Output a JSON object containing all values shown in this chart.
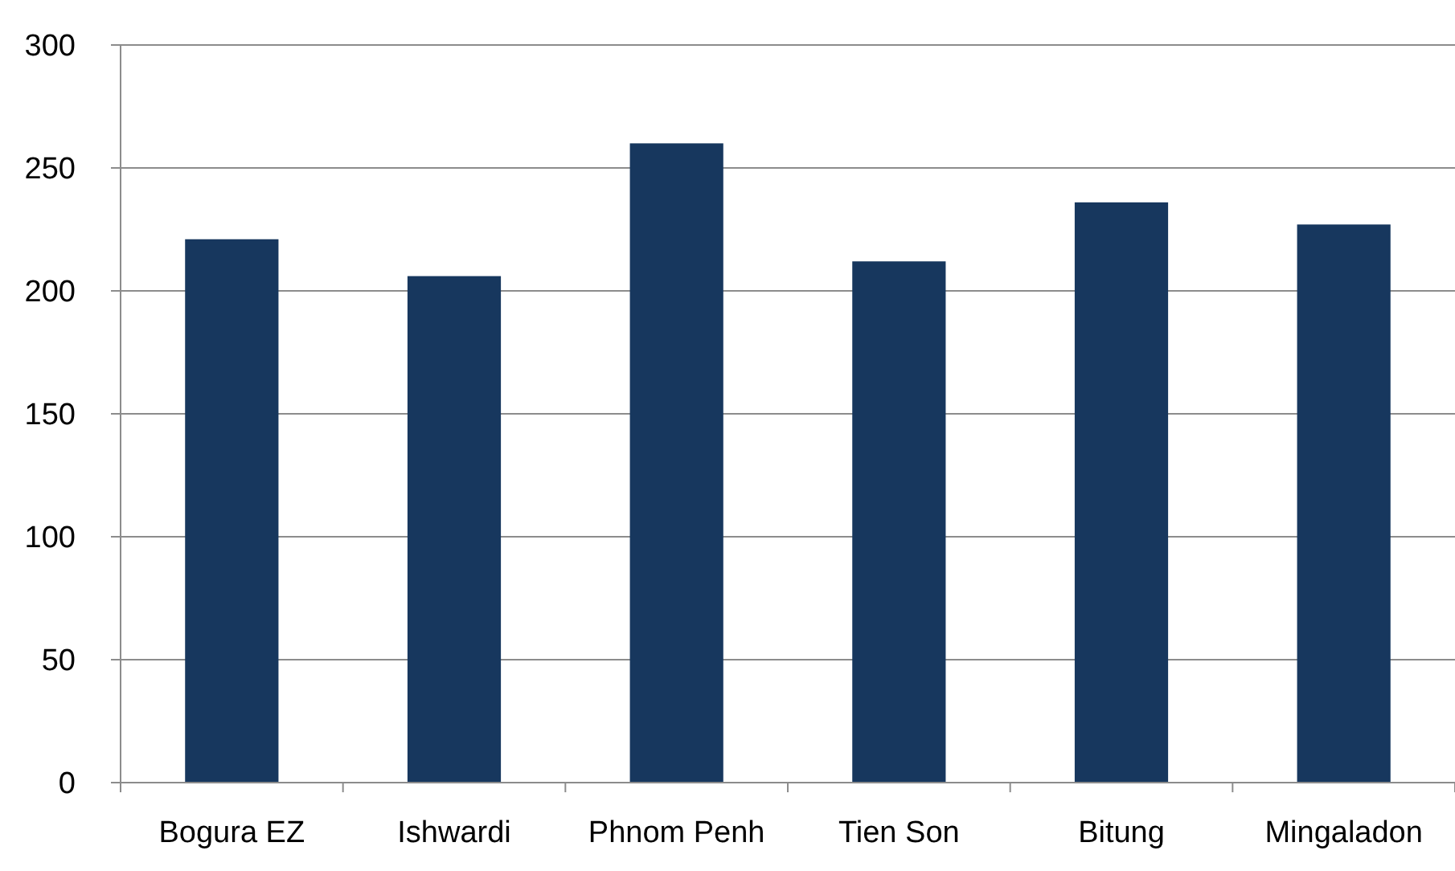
{
  "chart_data": {
    "type": "bar",
    "categories": [
      "Bogura EZ",
      "Ishwardi",
      "Phnom Penh",
      "Tien Son",
      "Bitung",
      "Mingaladon"
    ],
    "values": [
      221,
      206,
      260,
      212,
      236,
      227
    ],
    "color": "#17375e",
    "ylim": [
      0,
      300
    ],
    "yticks": [
      0,
      50,
      100,
      150,
      200,
      250,
      300
    ],
    "grid": "y"
  }
}
